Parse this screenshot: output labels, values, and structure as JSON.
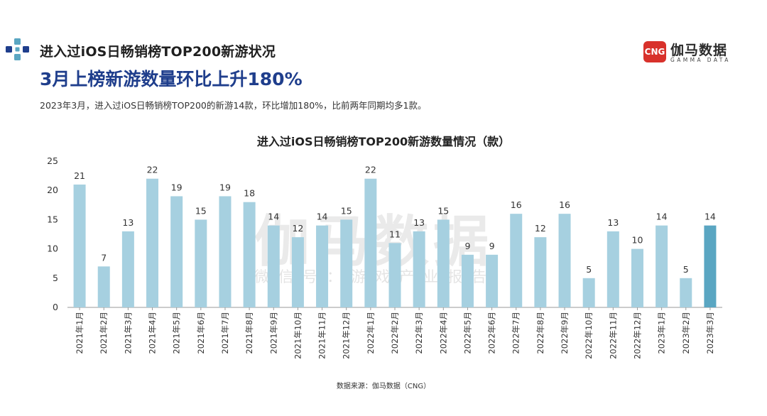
{
  "header": {
    "subtitle": "进入过iOS日畅销榜TOP200新游状况",
    "headline": "3月上榜新游数量环比上升180%",
    "description": "2023年3月，进入过iOS日畅销榜TOP200的新游14款，环比增加180%，比前两年同期均多1款。"
  },
  "logo": {
    "mark": "CNG",
    "name": "伽马数据",
    "english": "GAMMA DATA"
  },
  "watermark": {
    "main": "伽马数据",
    "sub": "微信号：游戏产业报告"
  },
  "source": "数据来源：伽马数据（CNG）",
  "colors": {
    "bar": "#a6d0e0",
    "bar_highlight": "#5aa6c2",
    "headline": "#1f3e8c",
    "logo_red": "#d8312b"
  },
  "chart_data": {
    "type": "bar",
    "title": "进入过iOS日畅销榜TOP200新游数量情况（款）",
    "xlabel": "",
    "ylabel": "",
    "ylim": [
      0,
      25
    ],
    "yticks": [
      0,
      5,
      10,
      15,
      20,
      25
    ],
    "grid": false,
    "legend": "none",
    "highlight_index": 26,
    "categories": [
      "2021年1月",
      "2021年2月",
      "2021年3月",
      "2021年4月",
      "2021年5月",
      "2021年6月",
      "2021年7月",
      "2021年8月",
      "2021年9月",
      "2021年10月",
      "2021年11月",
      "2021年12月",
      "2022年1月",
      "2022年2月",
      "2022年3月",
      "2022年4月",
      "2022年5月",
      "2022年6月",
      "2022年7月",
      "2022年8月",
      "2022年9月",
      "2022年10月",
      "2022年11月",
      "2022年12月",
      "2023年1月",
      "2023年2月",
      "2023年3月"
    ],
    "values": [
      21,
      7,
      13,
      22,
      19,
      15,
      19,
      18,
      14,
      12,
      14,
      15,
      22,
      11,
      13,
      15,
      9,
      9,
      16,
      12,
      16,
      5,
      13,
      10,
      14,
      5,
      14
    ]
  }
}
